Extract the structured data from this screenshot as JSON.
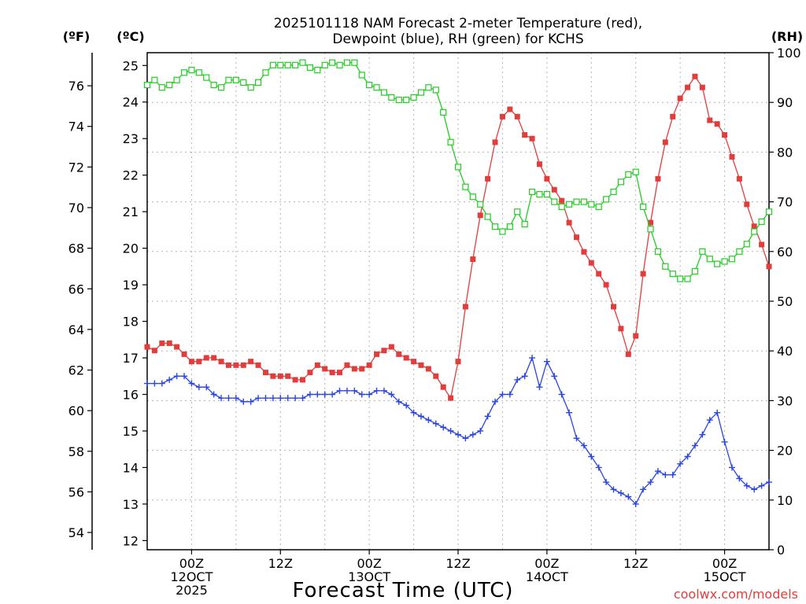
{
  "title": {
    "line1": "2025101118 NAM Forecast 2-meter Temperature (red),",
    "line2": "Dewpoint (blue), RH (green) for KCHS"
  },
  "axis_units": {
    "fahrenheit": "(ºF)",
    "celsius": "(ºC)",
    "rh": "(RH)"
  },
  "xlabel": "Forecast Time (UTC)",
  "credit": "coolwx.com/models",
  "colors": {
    "temperature": "#e23d3d",
    "dewpoint": "#2a46e0",
    "rh": "#22cc22",
    "grid": "#b5b5b5",
    "axis": "#000000"
  },
  "chart_data": {
    "type": "line",
    "title": "2025101118 NAM Forecast 2-meter Temperature (red), Dewpoint (blue), RH (green) for KCHS",
    "xlabel": "Forecast Time (UTC)",
    "x_unit": "forecast hour (0 = 2025-10-11 18Z)",
    "x_range": [
      0,
      84
    ],
    "x_ticks": [
      {
        "hour": 6,
        "lines": [
          "00Z",
          "12OCT",
          "2025"
        ]
      },
      {
        "hour": 18,
        "lines": [
          "12Z"
        ]
      },
      {
        "hour": 30,
        "lines": [
          "00Z",
          "13OCT"
        ]
      },
      {
        "hour": 42,
        "lines": [
          "12Z"
        ]
      },
      {
        "hour": 54,
        "lines": [
          "00Z",
          "14OCT"
        ]
      },
      {
        "hour": 66,
        "lines": [
          "12Z"
        ]
      },
      {
        "hour": 78,
        "lines": [
          "00Z",
          "15OCT"
        ]
      }
    ],
    "y_celsius": {
      "range": [
        11.75,
        25.35
      ],
      "ticks": [
        12,
        13,
        14,
        15,
        16,
        17,
        18,
        19,
        20,
        21,
        22,
        23,
        24,
        25
      ]
    },
    "y_fahrenheit": {
      "ticks": [
        54,
        56,
        58,
        60,
        62,
        64,
        66,
        68,
        70,
        72,
        74,
        76
      ]
    },
    "y_rh": {
      "range": [
        0,
        100
      ],
      "ticks": [
        0,
        10,
        20,
        30,
        40,
        50,
        60,
        70,
        80,
        90,
        100
      ]
    },
    "series": [
      {
        "name": "Temperature",
        "unit": "°C",
        "axis": "celsius",
        "color": "#e23d3d",
        "marker": "filled-square",
        "values": [
          17.3,
          17.2,
          17.4,
          17.4,
          17.3,
          17.1,
          16.9,
          16.9,
          17.0,
          17.0,
          16.9,
          16.8,
          16.8,
          16.8,
          16.9,
          16.8,
          16.6,
          16.5,
          16.5,
          16.5,
          16.4,
          16.4,
          16.6,
          16.8,
          16.7,
          16.6,
          16.6,
          16.8,
          16.7,
          16.7,
          16.8,
          17.1,
          17.2,
          17.3,
          17.1,
          17.0,
          16.9,
          16.8,
          16.7,
          16.5,
          16.2,
          15.9,
          16.9,
          18.4,
          19.7,
          20.9,
          21.9,
          22.9,
          23.6,
          23.8,
          23.6,
          23.1,
          23.0,
          22.3,
          21.9,
          21.6,
          21.3,
          20.7,
          20.3,
          19.9,
          19.6,
          19.3,
          19.0,
          18.4,
          17.8,
          17.1,
          17.6,
          19.3,
          20.7,
          21.9,
          22.9,
          23.6,
          24.1,
          24.4,
          24.7,
          24.4,
          23.5,
          23.4,
          23.1,
          22.5,
          21.9,
          21.2,
          20.6,
          20.1,
          19.5
        ]
      },
      {
        "name": "Dewpoint",
        "unit": "°C",
        "axis": "celsius",
        "color": "#2a46e0",
        "marker": "plus",
        "values": [
          16.3,
          16.3,
          16.3,
          16.4,
          16.5,
          16.5,
          16.3,
          16.2,
          16.2,
          16.0,
          15.9,
          15.9,
          15.9,
          15.8,
          15.8,
          15.9,
          15.9,
          15.9,
          15.9,
          15.9,
          15.9,
          15.9,
          16.0,
          16.0,
          16.0,
          16.0,
          16.1,
          16.1,
          16.1,
          16.0,
          16.0,
          16.1,
          16.1,
          16.0,
          15.8,
          15.7,
          15.5,
          15.4,
          15.3,
          15.2,
          15.1,
          15.0,
          14.9,
          14.8,
          14.9,
          15.0,
          15.4,
          15.8,
          16.0,
          16.0,
          16.4,
          16.5,
          17.0,
          16.2,
          16.9,
          16.5,
          16.0,
          15.5,
          14.8,
          14.6,
          14.3,
          14.0,
          13.6,
          13.4,
          13.3,
          13.2,
          13.0,
          13.4,
          13.6,
          13.9,
          13.8,
          13.8,
          14.1,
          14.3,
          14.6,
          14.9,
          15.3,
          15.5,
          14.7,
          14.0,
          13.7,
          13.5,
          13.4,
          13.5,
          13.6
        ]
      },
      {
        "name": "RH",
        "unit": "%",
        "axis": "rh",
        "color": "#22cc22",
        "marker": "open-square",
        "values": [
          93.5,
          94.5,
          93,
          93.5,
          94.5,
          96,
          96.5,
          96,
          95,
          93.5,
          93,
          94.5,
          94.5,
          94,
          93,
          94,
          96,
          97.5,
          97.5,
          97.5,
          97.5,
          98,
          97,
          96.5,
          97.5,
          98,
          97.5,
          98,
          98,
          95.5,
          93.5,
          93,
          92,
          91,
          90.5,
          90.5,
          91,
          92,
          93,
          92.5,
          88,
          82,
          77,
          73,
          71,
          69.5,
          67,
          65,
          64,
          65,
          68,
          65.5,
          72,
          71.5,
          71.5,
          70,
          69,
          69.5,
          70,
          70,
          69.5,
          69,
          70.5,
          72,
          74,
          75.5,
          76,
          69,
          64.5,
          60,
          57,
          55.5,
          54.5,
          54.5,
          56,
          60,
          58.5,
          57.5,
          58,
          58.5,
          60,
          61.5,
          64,
          66,
          68
        ]
      }
    ]
  }
}
